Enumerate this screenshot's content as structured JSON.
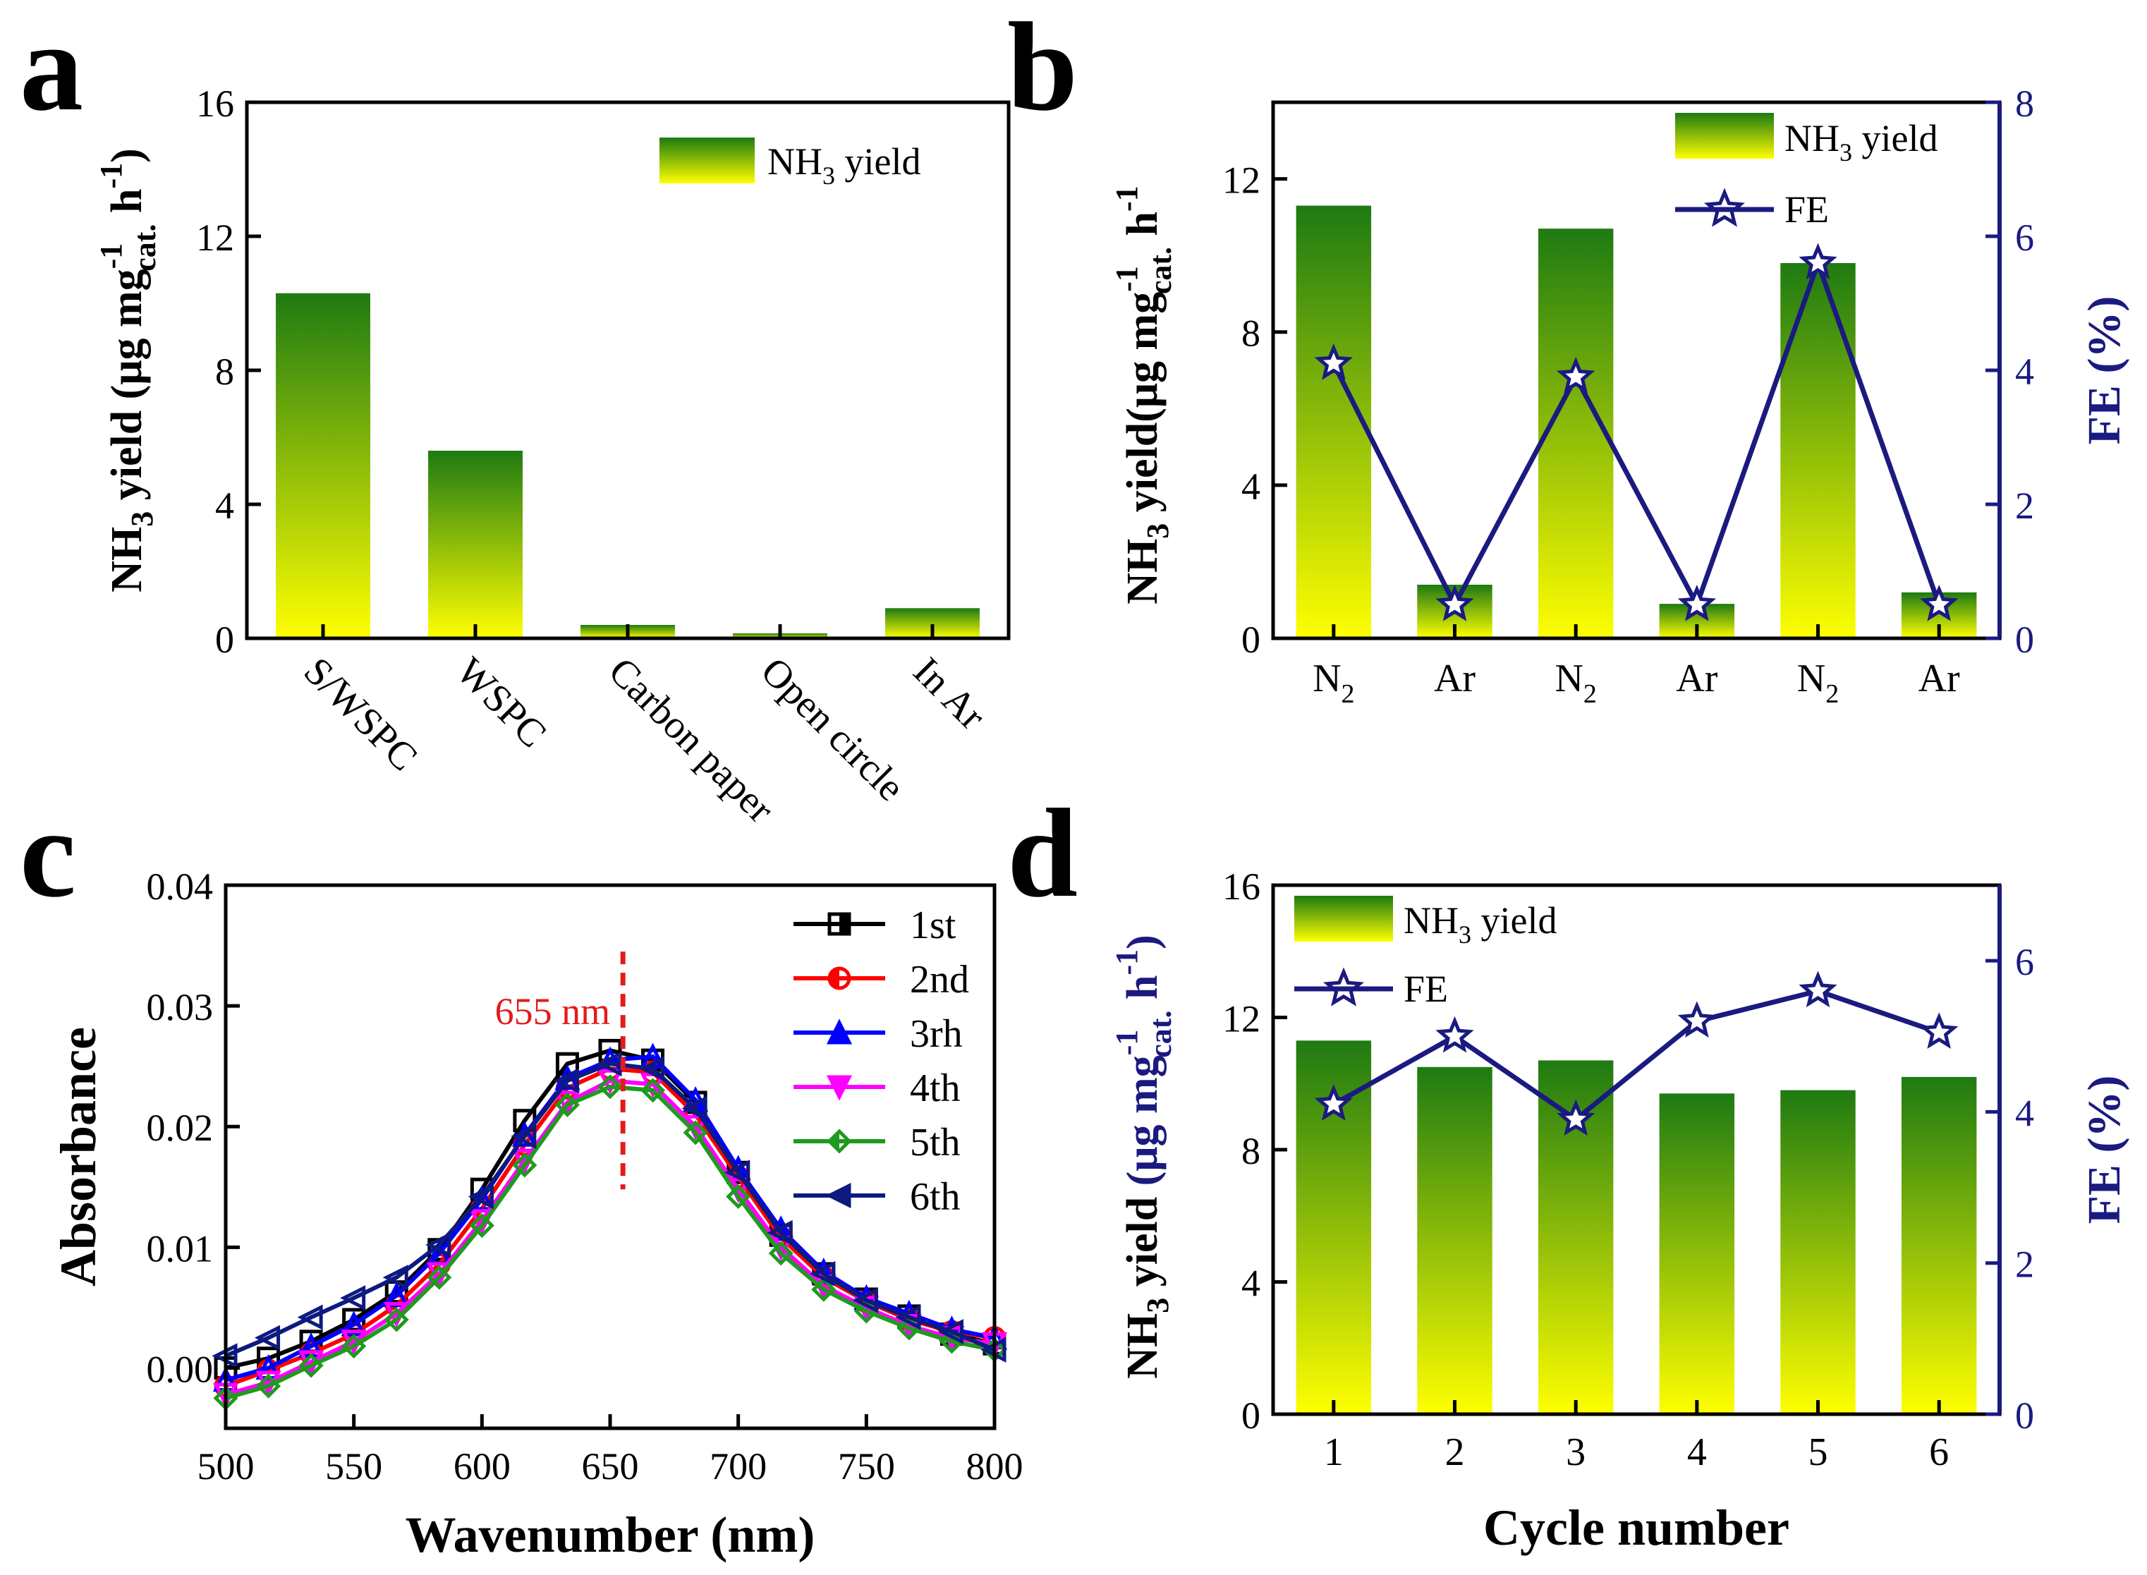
{
  "colors": {
    "bar_top": "#1e7a12",
    "bar_bottom": "#ffff00",
    "fe_line": "#1a1a80",
    "dash_red": "#e21b1b",
    "annotation_red": "#e21b1b",
    "series": [
      "#000000",
      "#ff0000",
      "#0000ff",
      "#ff00ff",
      "#1f9a1f",
      "#0d1a80"
    ]
  },
  "chart_data": [
    {
      "panel": "a",
      "type": "bar",
      "ylabel": "NH3 yield (μg mg-1cat. h-1)",
      "ylabel_parts": {
        "a": "NH",
        "sub1": "3",
        "b": " yield (μg mg",
        "sup1": "-1",
        "sub2": "cat.",
        "c": " h",
        "sup2": "-1",
        "d": ")"
      },
      "ylim": [
        0,
        16
      ],
      "yticks": [
        "0",
        "4",
        "8",
        "12",
        "16"
      ],
      "categories": [
        "S/WSPC",
        "WSPC",
        "Carbon paper",
        "Open circle",
        "In Ar"
      ],
      "values": [
        10.3,
        5.6,
        0.4,
        0.15,
        0.9
      ],
      "legend": {
        "pre": "NH",
        "sub": "3",
        "post": " yield"
      }
    },
    {
      "panel": "b",
      "type": "bar+line",
      "ylabel": "NH3 yield(μg mg-1cat. h-1)",
      "ylabel_parts": {
        "a": "NH",
        "sub1": "3",
        "b": " yield(μg mg",
        "sup1": "-1",
        "sub2": "cat.",
        "c": " h",
        "sup2": "-1",
        "d": ""
      },
      "ylabel2": "FE (%)",
      "ylim": [
        0,
        14
      ],
      "yticks": [
        "0",
        "4",
        "8",
        "12"
      ],
      "ylim2": [
        0,
        8
      ],
      "yticks2": [
        "0",
        "2",
        "4",
        "6",
        "8"
      ],
      "categories": [
        {
          "main": "N",
          "sub": "2"
        },
        {
          "main": "Ar",
          "sub": ""
        },
        {
          "main": "N",
          "sub": "2"
        },
        {
          "main": "Ar",
          "sub": ""
        },
        {
          "main": "N",
          "sub": "2"
        },
        {
          "main": "Ar",
          "sub": ""
        }
      ],
      "values": [
        11.3,
        1.4,
        10.7,
        0.9,
        9.8,
        1.2
      ],
      "fe_values": [
        4.1,
        0.5,
        3.9,
        0.5,
        5.6,
        0.5
      ],
      "legend_bar": {
        "pre": "NH",
        "sub": "3",
        "post": " yield"
      },
      "legend_line": "FE"
    },
    {
      "panel": "c",
      "type": "line",
      "xlabel": "Wavenumber (nm)",
      "ylabel": "Absorbance",
      "xlim": [
        500,
        800
      ],
      "xticks": [
        "500",
        "550",
        "600",
        "650",
        "700",
        "750",
        "800"
      ],
      "ylim": [
        -0.005,
        0.04
      ],
      "yticks": [
        "0.00",
        "0.01",
        "0.02",
        "0.03",
        "0.04"
      ],
      "annotation": "655 nm",
      "marker_x": 655,
      "series": [
        {
          "name": "1st",
          "marker": "square",
          "values": [
            0.0,
            0.0008,
            0.0022,
            0.004,
            0.0063,
            0.0098,
            0.0148,
            0.0205,
            0.0252,
            0.0263,
            0.0255,
            0.022,
            0.0162,
            0.011,
            0.0078,
            0.0057,
            0.0043,
            0.0028,
            0.002
          ]
        },
        {
          "name": "2nd",
          "marker": "circle",
          "values": [
            -0.0015,
            -0.0002,
            0.0012,
            0.0028,
            0.0052,
            0.0086,
            0.0132,
            0.0185,
            0.0232,
            0.0248,
            0.0245,
            0.021,
            0.0158,
            0.0108,
            0.0075,
            0.0055,
            0.004,
            0.003,
            0.0025
          ]
        },
        {
          "name": "3rh",
          "marker": "triangle-up",
          "values": [
            -0.001,
            0.0,
            0.0018,
            0.0036,
            0.006,
            0.0095,
            0.014,
            0.0193,
            0.024,
            0.0255,
            0.0258,
            0.0222,
            0.0165,
            0.0115,
            0.008,
            0.0058,
            0.0045,
            0.0032,
            0.0025
          ]
        },
        {
          "name": "4th",
          "marker": "triangle-down",
          "values": [
            -0.0022,
            -0.0012,
            0.0005,
            0.0022,
            0.0045,
            0.0078,
            0.0122,
            0.0172,
            0.022,
            0.0238,
            0.0235,
            0.02,
            0.0148,
            0.01,
            0.0068,
            0.005,
            0.0035,
            0.0025,
            0.002
          ]
        },
        {
          "name": "5th",
          "marker": "diamond",
          "values": [
            -0.0025,
            -0.0015,
            0.0002,
            0.0018,
            0.004,
            0.0075,
            0.0118,
            0.0168,
            0.0218,
            0.0233,
            0.023,
            0.0195,
            0.0142,
            0.0095,
            0.0065,
            0.0047,
            0.0033,
            0.0022,
            0.0015
          ]
        },
        {
          "name": "6th",
          "marker": "triangle-left",
          "values": [
            0.001,
            0.0025,
            0.0042,
            0.0058,
            0.0075,
            0.0102,
            0.0142,
            0.0192,
            0.0238,
            0.0252,
            0.0248,
            0.0215,
            0.0162,
            0.0112,
            0.0078,
            0.0056,
            0.0042,
            0.003,
            0.0015
          ]
        }
      ]
    },
    {
      "panel": "d",
      "type": "bar+line",
      "xlabel": "Cycle number",
      "ylabel_parts": {
        "a": "NH",
        "sub1": "3",
        "b": " yield ",
        "c": "(μg mg",
        "sup1": "-1",
        "sub2": "cat.",
        "d": " h",
        "sup2": "-1",
        "e": ")"
      },
      "ylabel": "NH3 yield (μg mg-1cat. h-1)",
      "ylabel2": "FE (%)",
      "ylim": [
        0,
        16
      ],
      "yticks": [
        "0",
        "4",
        "8",
        "12",
        "16"
      ],
      "ylim2": [
        0,
        7
      ],
      "yticks2": [
        "0",
        "2",
        "4",
        "6"
      ],
      "categories": [
        "1",
        "2",
        "3",
        "4",
        "5",
        "6"
      ],
      "values": [
        11.3,
        10.5,
        10.7,
        9.7,
        9.8,
        10.2
      ],
      "fe_values": [
        4.1,
        5.0,
        3.9,
        5.2,
        5.6,
        5.05
      ],
      "legend_bar": {
        "pre": "NH",
        "sub": "3",
        "post": " yield"
      },
      "legend_line": "FE"
    }
  ],
  "panel_letters": [
    "a",
    "b",
    "c",
    "d"
  ]
}
